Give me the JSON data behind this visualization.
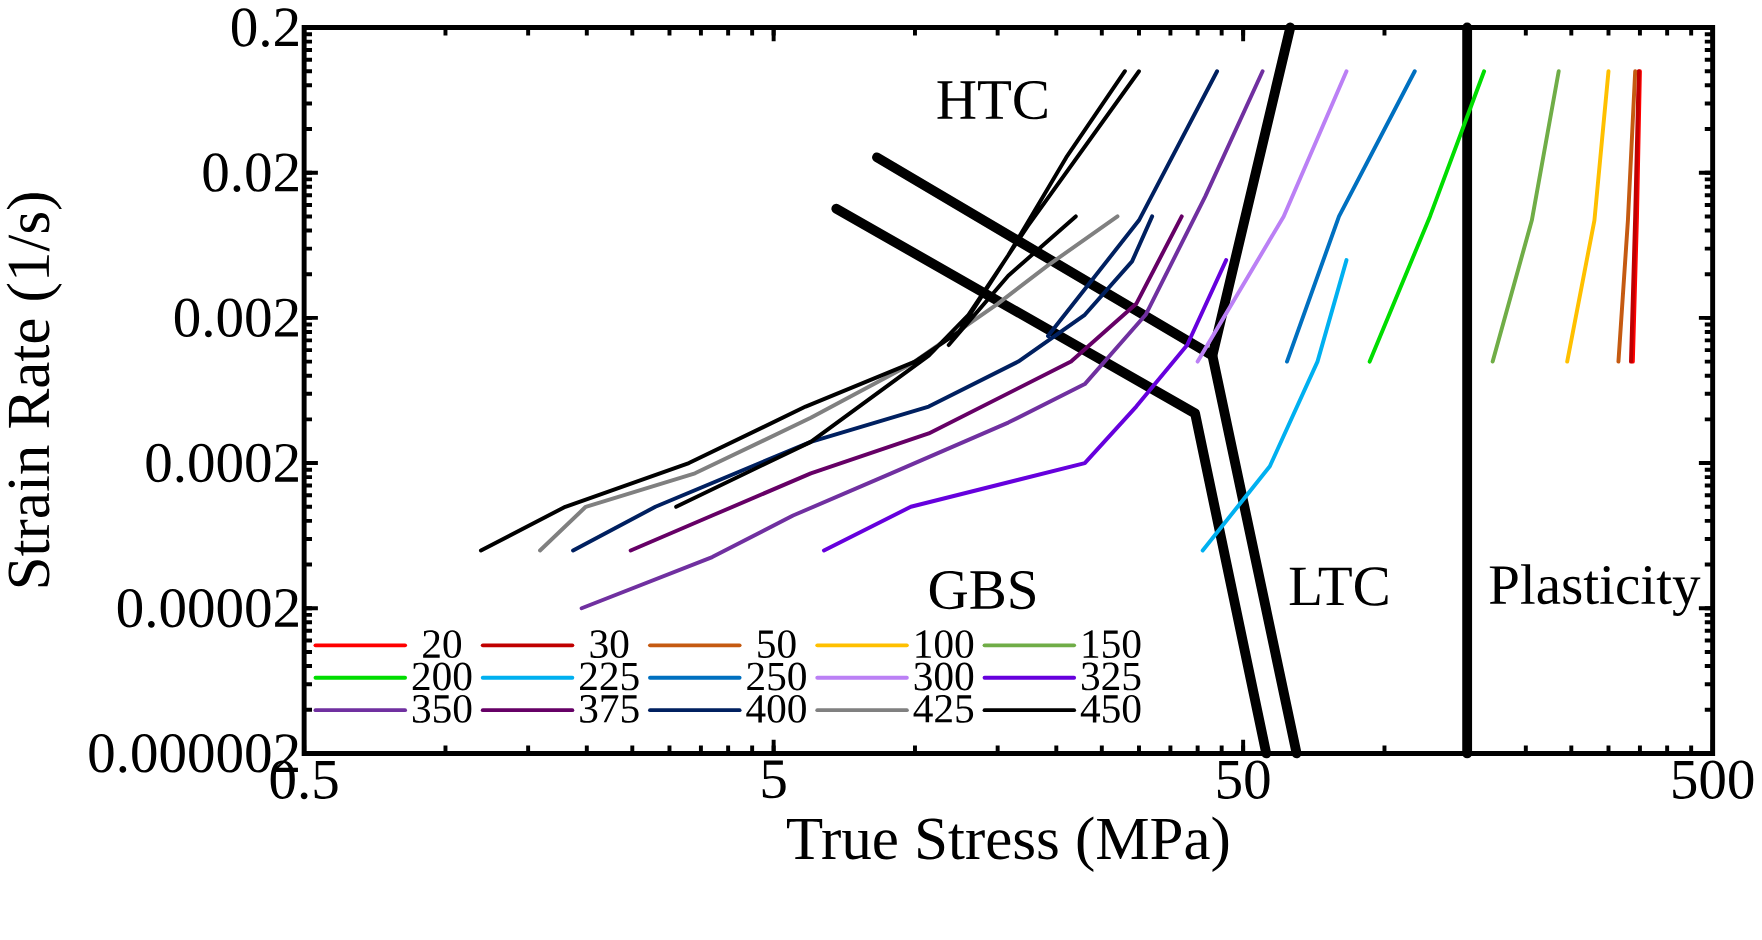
{
  "chart_data": {
    "type": "line",
    "xlabel": "True Stress (MPa)",
    "ylabel": "Strain Rate (1/s)",
    "log": "xy",
    "grid": false,
    "legend": "bottom left",
    "marker": "none",
    "line_style": "solid",
    "xlim": [
      0.5,
      500
    ],
    "xticks": [
      0.5,
      5,
      50,
      500
    ],
    "ylim": [
      2e-06,
      0.2
    ],
    "yticks": [
      {
        "value": 2e-06,
        "label": "0.000002"
      },
      {
        "value": 2e-05,
        "label": "0.00002"
      },
      {
        "value": 0.0002,
        "label": "0.0002"
      },
      {
        "value": 0.002,
        "label": "0.002"
      },
      {
        "value": 0.02,
        "label": "0.02"
      },
      {
        "value": 0.2,
        "label": "0.2"
      }
    ],
    "annotations": [
      "HTC",
      "GBS",
      "LTC",
      "Plasticity"
    ],
    "series": [
      {
        "color": "#000000",
        "x": [
          8.3,
          43
        ],
        "values": [
          0.0255,
          0.0011
        ]
      },
      {
        "color": "#000000",
        "x": [
          63,
          43,
          65
        ],
        "values": [
          0.2,
          0.0011,
          2e-06
        ]
      },
      {
        "color": "#000000",
        "x": [
          6.8,
          39.5,
          56
        ],
        "values": [
          0.0113,
          0.00044,
          2e-06
        ]
      },
      {
        "color": "#000000",
        "x": [
          150,
          150
        ],
        "values": [
          2e-06,
          0.2
        ]
      },
      {
        "name": "20",
        "color": "#ff0000",
        "x": [
          338,
          345,
          350
        ],
        "values": [
          0.001,
          0.01,
          0.1
        ]
      },
      {
        "name": "30",
        "color": "#c00000",
        "x": [
          335,
          342,
          348
        ],
        "values": [
          0.001,
          0.01,
          0.1
        ]
      },
      {
        "name": "50",
        "color": "#c55a11",
        "x": [
          315,
          330,
          342
        ],
        "values": [
          0.001,
          0.0094,
          0.1
        ]
      },
      {
        "name": "100",
        "color": "#ffc000",
        "x": [
          245,
          280,
          300
        ],
        "values": [
          0.001,
          0.0094,
          0.1
        ]
      },
      {
        "name": "150",
        "color": "#70ad47",
        "x": [
          170,
          206,
          235
        ],
        "values": [
          0.001,
          0.0094,
          0.1
        ]
      },
      {
        "name": "200",
        "color": "#00dd00",
        "x": [
          93,
          125,
          163
        ],
        "values": [
          0.001,
          0.01,
          0.1
        ]
      },
      {
        "name": "225",
        "color": "#00b0f0",
        "x": [
          41,
          57,
          72,
          83
        ],
        "values": [
          5e-05,
          0.00019,
          0.001,
          0.005
        ]
      },
      {
        "name": "250",
        "color": "#0070c0",
        "x": [
          62,
          80,
          116
        ],
        "values": [
          0.001,
          0.01,
          0.1
        ]
      },
      {
        "name": "300",
        "color": "#bb80f5",
        "x": [
          40,
          61,
          83
        ],
        "values": [
          0.001,
          0.01,
          0.1
        ]
      },
      {
        "name": "325",
        "color": "#6600dd",
        "x": [
          6.4,
          9.8,
          23,
          29.6,
          38,
          46
        ],
        "values": [
          5e-05,
          0.0001,
          0.0002,
          0.00049,
          0.0013,
          0.005
        ]
      },
      {
        "name": "350",
        "color": "#7030a0",
        "x": [
          1.95,
          3.7,
          5.5,
          8.9,
          15.8,
          23,
          31,
          41.5,
          55
        ],
        "values": [
          2e-05,
          4.5e-05,
          8.7e-05,
          0.00017,
          0.00038,
          0.0007,
          0.0021,
          0.0137,
          0.1
        ]
      },
      {
        "name": "375",
        "color": "#660066",
        "x": [
          2.48,
          3.7,
          6.0,
          10.7,
          21.5,
          29.6,
          37
        ],
        "values": [
          5e-05,
          8.7e-05,
          0.00017,
          0.00032,
          0.001,
          0.0025,
          0.01
        ]
      },
      {
        "name": "400",
        "color": "#002060",
        "x": [
          1.87,
          2.8,
          6.0,
          10.7,
          16.6,
          23,
          29,
          32,
          null,
          19.2,
          30,
          44
        ],
        "values": [
          5e-05,
          0.0001,
          0.00028,
          0.00049,
          0.001,
          0.0021,
          0.0049,
          0.01,
          null,
          0.0015,
          0.0094,
          0.1
        ]
      },
      {
        "name": "425",
        "color": "#808080",
        "x": [
          1.59,
          1.99,
          3.4,
          6.0,
          9.8,
          15,
          19.2,
          27
        ],
        "values": [
          5e-05,
          0.0001,
          0.00017,
          0.00041,
          0.00096,
          0.0025,
          0.0046,
          0.01
        ]
      },
      {
        "name": "450",
        "color": "#000000",
        "x": [
          1.19,
          1.8,
          3.3,
          5.85,
          10,
          12.4,
          15.8,
          21,
          28,
          null,
          3.1,
          6.0,
          10.7,
          13,
          17.4,
          30,
          null,
          11.8,
          15.8,
          22
        ],
        "values": [
          5e-05,
          0.0001,
          0.0002,
          0.00049,
          0.001,
          0.0016,
          0.0054,
          0.0255,
          0.1,
          null,
          0.0001,
          0.00028,
          0.0011,
          0.0021,
          0.0086,
          0.1,
          null,
          0.0013,
          0.0039,
          0.01
        ]
      }
    ]
  }
}
